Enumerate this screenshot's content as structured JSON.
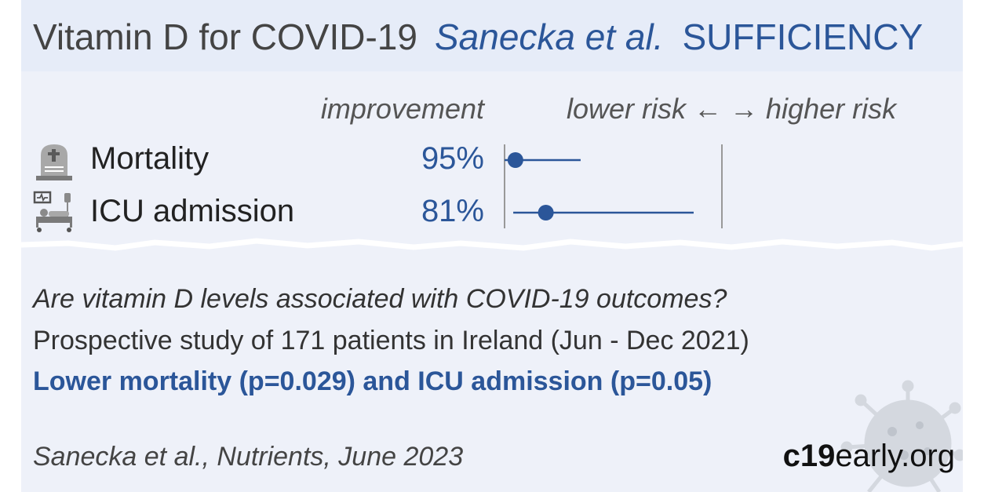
{
  "header": {
    "title": "Vitamin D for COVID-19",
    "authors": "Sanecka et al.",
    "verdict": "SUFFICIENCY"
  },
  "columns": {
    "improvement": "improvement",
    "risk": "lower risk ← → higher risk"
  },
  "chart_data": {
    "type": "forest",
    "x_scale": "relative risk, no effect line at 1",
    "rows": [
      {
        "label": "Mortality",
        "improvement": "95%",
        "rr": 0.05,
        "ci": [
          0.0,
          0.35
        ],
        "icon": "tombstone-icon"
      },
      {
        "label": "ICU admission",
        "improvement": "81%",
        "rr": 0.19,
        "ci": [
          0.04,
          0.87
        ],
        "icon": "hospital-bed-icon"
      }
    ],
    "colors": {
      "point": "#2b5699",
      "line": "#2b5699",
      "axis": "#999999"
    }
  },
  "summary": {
    "question": "Are vitamin D levels associated with COVID-19 outcomes?",
    "design": "Prospective study of 171 patients in Ireland (Jun - Dec 2021)",
    "result": "Lower mortality (p=0.029) and ICU admission (p=0.05)"
  },
  "citation": "Sanecka et al., Nutrients, June 2023",
  "site": {
    "bold": "c19",
    "rest": "early.org"
  },
  "colors": {
    "accent": "#2b5699",
    "header_bg": "#e6ecf8",
    "panel_bg": "#eef1f9"
  }
}
